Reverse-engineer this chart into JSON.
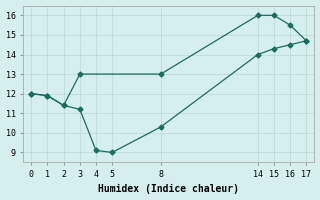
{
  "xlabel": "Humidex (Indice chaleur)",
  "bg_color": "#d4efed",
  "line_color": "#1a6b60",
  "grid_color": "#b8d8d5",
  "upper_x": [
    0,
    1,
    2,
    3,
    8,
    14,
    15,
    16,
    17
  ],
  "upper_y": [
    12.0,
    11.9,
    11.4,
    13.0,
    13.0,
    16.0,
    16.0,
    15.5,
    14.7
  ],
  "lower_x": [
    0,
    1,
    2,
    3,
    4,
    5,
    8,
    14,
    15,
    16,
    17
  ],
  "lower_y": [
    12.0,
    11.9,
    11.4,
    11.2,
    9.1,
    9.0,
    10.3,
    14.0,
    14.3,
    14.5,
    14.7
  ],
  "xlim": [
    -0.5,
    17.5
  ],
  "ylim": [
    8.5,
    16.5
  ],
  "xticks": [
    0,
    1,
    2,
    3,
    4,
    5,
    8,
    14,
    15,
    16,
    17
  ],
  "yticks": [
    9,
    10,
    11,
    12,
    13,
    14,
    15,
    16
  ],
  "marker_size": 2.5,
  "linewidth": 0.9,
  "xlabel_fontsize": 7,
  "tick_fontsize": 6
}
